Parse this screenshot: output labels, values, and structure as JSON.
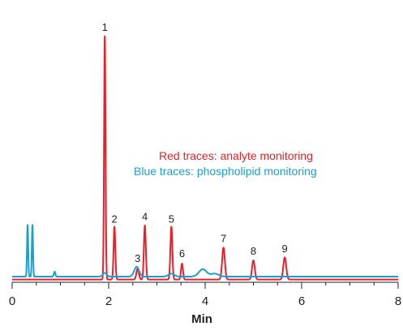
{
  "chart_data": {
    "type": "line",
    "xlabel": "Min",
    "ylabel": "",
    "title": "",
    "xlim": [
      0,
      8
    ],
    "ylim": [
      0,
      100
    ],
    "x_ticks": [
      0,
      2,
      4,
      6,
      8
    ],
    "x_tick_labels": [
      "0",
      "2",
      "4",
      "6",
      "8"
    ],
    "grid": false,
    "annotations": [
      {
        "text": "Red traces: analyte monitoring",
        "color": "#e8202a"
      },
      {
        "text": "Blue traces: phospholipid monitoring",
        "color": "#1a9fd0"
      }
    ],
    "peaks": [
      {
        "label": "1",
        "x": 1.92,
        "y": 98
      },
      {
        "label": "2",
        "x": 2.12,
        "y": 20
      },
      {
        "label": "3",
        "x": 2.6,
        "y": 4
      },
      {
        "label": "4",
        "x": 2.75,
        "y": 21
      },
      {
        "label": "5",
        "x": 3.3,
        "y": 20
      },
      {
        "label": "6",
        "x": 3.52,
        "y": 6
      },
      {
        "label": "7",
        "x": 4.38,
        "y": 12
      },
      {
        "label": "8",
        "x": 5.0,
        "y": 7
      },
      {
        "label": "9",
        "x": 5.65,
        "y": 8
      }
    ],
    "series": [
      {
        "color": "#e8202a",
        "baseline": -1.2,
        "peaks": [
          {
            "x": 1.92,
            "height": 99,
            "width": 0.015
          },
          {
            "x": 2.12,
            "height": 21.5,
            "width": 0.018
          },
          {
            "x": 2.6,
            "height": 4.5,
            "width": 0.025
          },
          {
            "x": 2.75,
            "height": 22,
            "width": 0.02
          },
          {
            "x": 3.3,
            "height": 21.5,
            "width": 0.02
          },
          {
            "x": 3.52,
            "height": 6.5,
            "width": 0.02
          },
          {
            "x": 4.38,
            "height": 13,
            "width": 0.028
          },
          {
            "x": 5.0,
            "height": 7.8,
            "width": 0.028
          },
          {
            "x": 5.65,
            "height": 9,
            "width": 0.03
          }
        ]
      },
      {
        "color": "#1a9fd0",
        "baseline": 0,
        "peaks": [
          {
            "x": 0.32,
            "height": 21,
            "width": 0.012
          },
          {
            "x": 0.42,
            "height": 21,
            "width": 0.012
          },
          {
            "x": 0.88,
            "height": 2,
            "width": 0.015
          },
          {
            "x": 1.92,
            "height": 1.5,
            "width": 0.04
          },
          {
            "x": 2.58,
            "height": 4,
            "width": 0.05
          },
          {
            "x": 3.3,
            "height": 1.2,
            "width": 0.06
          },
          {
            "x": 3.95,
            "height": 3,
            "width": 0.08
          },
          {
            "x": 4.2,
            "height": 1.2,
            "width": 0.08
          }
        ]
      }
    ]
  }
}
